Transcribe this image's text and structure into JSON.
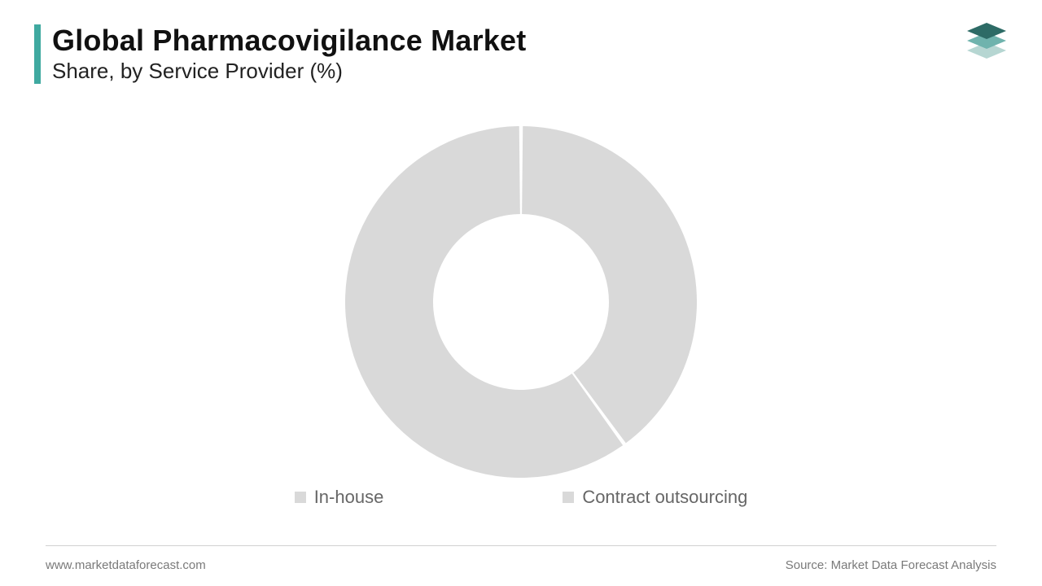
{
  "header": {
    "title": "Global Pharmacovigilance Market",
    "subtitle": "Share, by Service Provider (%)",
    "accent_color": "#3fa9a0",
    "title_fontsize": 36,
    "subtitle_fontsize": 26,
    "title_color": "#111111",
    "subtitle_color": "#222222"
  },
  "logo": {
    "colors": {
      "top": "#2d6b66",
      "mid": "#6fb3ad",
      "bottom": "#b6d6d2"
    }
  },
  "chart": {
    "type": "donut",
    "categories": [
      "In-house",
      "Contract outsourcing"
    ],
    "values": [
      40,
      60
    ],
    "colors": [
      "#d9d9d9",
      "#d9d9d9"
    ],
    "gap_color": "#ffffff",
    "gap_width_deg": 1.2,
    "outer_radius": 216,
    "inner_radius": 108,
    "background_color": "#ffffff",
    "start_angle_deg": -90
  },
  "legend": {
    "items": [
      {
        "label": "In-house",
        "color": "#d9d9d9"
      },
      {
        "label": "Contract outsourcing",
        "color": "#d9d9d9"
      }
    ],
    "fontsize": 22,
    "text_color": "#666666"
  },
  "footer": {
    "left": "www.marketdataforecast.com",
    "right": "Source: Market Data Forecast Analysis",
    "text_color": "#7a7a7a",
    "line_color": "#d0d0d0",
    "fontsize": 15
  }
}
